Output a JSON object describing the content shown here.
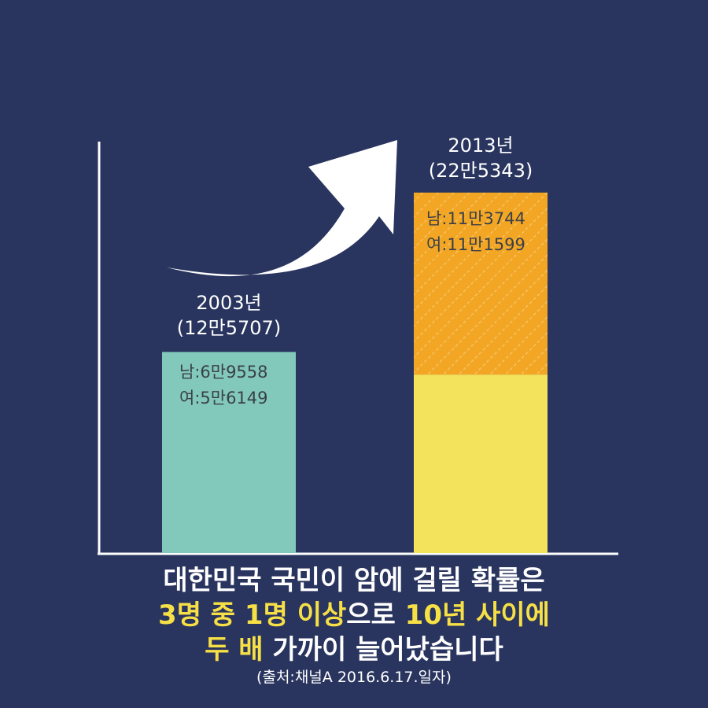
{
  "chart_data": {
    "type": "bar",
    "stacked": true,
    "categories": [
      "2003년",
      "2013년"
    ],
    "totals": [
      125707,
      225343
    ],
    "total_labels": [
      "(12만5707)",
      "(22만5343)"
    ],
    "series": [
      {
        "name": "남",
        "values": [
          69558,
          113744
        ]
      },
      {
        "name": "여",
        "values": [
          56149,
          111599
        ]
      }
    ],
    "bar_annotations": [
      [
        "남:6만9558",
        "여:5만6149"
      ],
      [
        "남:11만3744",
        "여:11만1599"
      ]
    ],
    "ylim": [
      0,
      240000
    ],
    "grid": false,
    "colors": {
      "bar_2003": "#82c9bc",
      "bar_2013_bottom": "#f3e25c",
      "bar_2013_top": "#f3a623",
      "axis": "#ffffff",
      "arrow": "#ffffff"
    }
  },
  "caption": {
    "line1": "대한민국 국민이 암에 걸릴 확률은",
    "line2_hl1": "3명 중 1명 이상",
    "line2_mid": "으로 ",
    "line2_hl2": "10년 사이에",
    "line3_hl": "두 배",
    "line3_rest": " 가까이 늘어났습니다",
    "source": "(출처:채널A 2016.6.17.일자)"
  }
}
